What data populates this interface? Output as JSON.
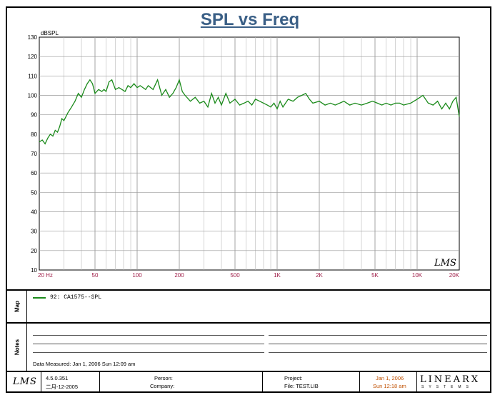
{
  "chart_data": {
    "type": "line",
    "title": "SPL vs Freq",
    "ylabel": "dBSPL",
    "xlabel": "",
    "x_scale": "log",
    "xlim": [
      20,
      20000
    ],
    "ylim": [
      10,
      130
    ],
    "x_ticks": [
      {
        "value": 20,
        "label": "20  Hz"
      },
      {
        "value": 50,
        "label": "50"
      },
      {
        "value": 100,
        "label": "100"
      },
      {
        "value": 200,
        "label": "200"
      },
      {
        "value": 500,
        "label": "500"
      },
      {
        "value": 1000,
        "label": "1K"
      },
      {
        "value": 2000,
        "label": "2K"
      },
      {
        "value": 5000,
        "label": "5K"
      },
      {
        "value": 10000,
        "label": "10K"
      },
      {
        "value": 20000,
        "label": "20K"
      }
    ],
    "y_ticks": [
      10,
      20,
      30,
      40,
      50,
      60,
      70,
      80,
      90,
      100,
      110,
      120,
      130
    ],
    "grid": true,
    "colors": {
      "series": "#1a8a1a",
      "x_tick_labels": "#a0204a",
      "grid": "#b8b8b8"
    },
    "series": [
      {
        "name": "92: CA1575--SPL",
        "x": [
          20,
          21,
          22,
          23,
          24,
          25,
          26,
          27,
          28,
          29,
          30,
          32,
          34,
          36,
          38,
          40,
          42,
          44,
          46,
          48,
          50,
          53,
          56,
          58,
          60,
          63,
          66,
          70,
          74,
          78,
          82,
          86,
          90,
          95,
          100,
          105,
          110,
          115,
          120,
          130,
          140,
          150,
          160,
          170,
          180,
          190,
          200,
          210,
          220,
          240,
          260,
          280,
          300,
          320,
          340,
          360,
          380,
          400,
          430,
          460,
          500,
          540,
          580,
          620,
          660,
          700,
          750,
          800,
          850,
          900,
          950,
          1000,
          1050,
          1100,
          1200,
          1300,
          1400,
          1500,
          1600,
          1700,
          1800,
          2000,
          2200,
          2400,
          2600,
          2800,
          3000,
          3300,
          3600,
          4000,
          4400,
          4800,
          5200,
          5600,
          6000,
          6500,
          7000,
          7500,
          8000,
          9000,
          10000,
          11000,
          12000,
          13000,
          14000,
          15000,
          16000,
          17000,
          18000,
          19000,
          20000
        ],
        "y": [
          76,
          77,
          75,
          78,
          80,
          79,
          82,
          81,
          84,
          88,
          87,
          91,
          94,
          97,
          101,
          99,
          103,
          106,
          108,
          106,
          101,
          103,
          102,
          103,
          102,
          107,
          108,
          103,
          104,
          103,
          102,
          105,
          104,
          106,
          104,
          105,
          104,
          103,
          105,
          103,
          108,
          100,
          103,
          99,
          101,
          104,
          108,
          102,
          100,
          97,
          99,
          96,
          97,
          94,
          101,
          96,
          99,
          95,
          101,
          96,
          98,
          95,
          96,
          97,
          95,
          98,
          97,
          96,
          95,
          94,
          96,
          93,
          97,
          94,
          98,
          97,
          99,
          100,
          101,
          98,
          96,
          97,
          95,
          96,
          95,
          96,
          97,
          95,
          96,
          95,
          96,
          97,
          96,
          95,
          96,
          95,
          96,
          96,
          95,
          96,
          98,
          100,
          96,
          95,
          97,
          93,
          96,
          93,
          97,
          99,
          89
        ]
      }
    ]
  },
  "map": {
    "side_label": "Map",
    "legend_label": "92: CA1575--SPL"
  },
  "notes": {
    "side_label": "Notes",
    "measured": "Data Measured: Jan 1, 2006  Sun 12:09 am"
  },
  "footer": {
    "logo": "LMS",
    "version": "4.5.0.351",
    "version_date": "二月-12-2005",
    "person_label": "Person:",
    "company_label": "Company:",
    "project_label": "Project:",
    "file_label": "File: TEST.LIB",
    "date": "Jan  1, 2006",
    "time": "Sun 12:18 am",
    "brand_main": "LINEARX",
    "brand_sub": "SYSTEMS"
  },
  "plot_logo": "LMS"
}
